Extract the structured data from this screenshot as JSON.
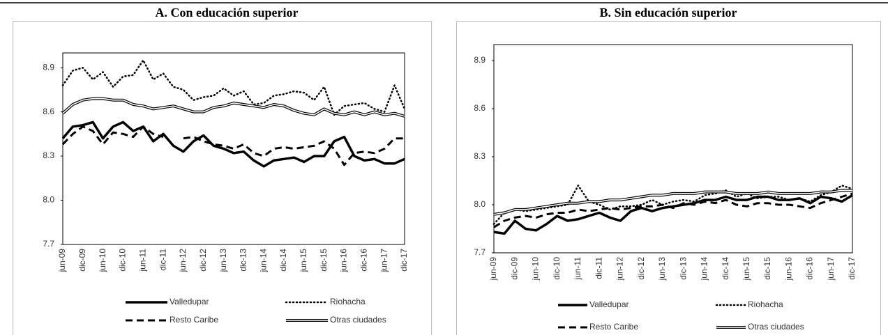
{
  "chart_data": [
    {
      "type": "line",
      "title": "A. Con educación superior",
      "categories": [
        "jun-09",
        null,
        "dic-09",
        null,
        "jun-10",
        null,
        "dic-10",
        null,
        "jun-11",
        null,
        "dic-11",
        null,
        "jun-12",
        null,
        "dic-12",
        null,
        "jun-13",
        null,
        "dic-13",
        null,
        "jun-14",
        null,
        "dic-14",
        null,
        "jun-15",
        null,
        "dic-15",
        null,
        "jun-16",
        null,
        "dic-16",
        null,
        "jun-17",
        null,
        "dic-17"
      ],
      "ylim": [
        7.7,
        9.0
      ],
      "yticks": [
        7.7,
        {
          "value": 8.0,
          "label": "8.0"
        },
        8.3,
        8.6,
        8.9
      ],
      "series": [
        {
          "name": "Valledupar",
          "color": "#000000",
          "style": "solid",
          "values": [
            8.42,
            8.5,
            8.51,
            8.53,
            8.42,
            8.5,
            8.53,
            8.47,
            8.5,
            8.4,
            8.45,
            8.37,
            8.33,
            8.4,
            8.44,
            8.37,
            8.35,
            8.32,
            8.33,
            8.27,
            8.23,
            8.27,
            8.28,
            8.29,
            8.26,
            8.3,
            8.3,
            8.4,
            8.43,
            8.3,
            8.27,
            8.28,
            8.25,
            8.25,
            8.28
          ]
        },
        {
          "name": "Riohacha",
          "color": "#000000",
          "style": "dotted",
          "values": [
            8.78,
            8.88,
            8.9,
            8.82,
            8.87,
            8.77,
            8.84,
            8.85,
            8.95,
            8.82,
            8.86,
            8.77,
            8.75,
            8.68,
            8.7,
            8.71,
            8.76,
            8.71,
            8.74,
            8.65,
            8.66,
            8.71,
            8.72,
            8.74,
            8.73,
            8.68,
            8.77,
            8.58,
            8.64,
            8.65,
            8.66,
            8.62,
            8.6,
            8.78,
            8.62
          ]
        },
        {
          "name": "Resto Caribe",
          "color": "#000000",
          "style": "dashed",
          "values": [
            8.38,
            8.45,
            8.5,
            8.47,
            8.38,
            8.46,
            8.45,
            8.43,
            8.5,
            8.45,
            8.43,
            null,
            8.42,
            8.43,
            8.4,
            8.38,
            8.37,
            8.35,
            8.38,
            8.32,
            8.3,
            8.35,
            8.36,
            8.35,
            8.36,
            8.37,
            8.4,
            8.35,
            8.24,
            8.32,
            8.33,
            8.32,
            8.35,
            8.42,
            8.42
          ]
        },
        {
          "name": "Otras ciudades",
          "color": "#000000",
          "style": "double",
          "values": [
            8.59,
            8.65,
            8.68,
            8.69,
            8.69,
            8.68,
            8.68,
            8.65,
            8.64,
            8.62,
            8.63,
            8.64,
            8.62,
            8.6,
            8.6,
            8.63,
            8.64,
            8.66,
            8.65,
            8.64,
            8.63,
            8.65,
            8.64,
            8.61,
            8.59,
            8.58,
            8.62,
            8.59,
            8.58,
            8.6,
            8.58,
            8.6,
            8.58,
            8.59,
            8.57
          ]
        }
      ]
    },
    {
      "type": "line",
      "title": "B. Sin educación superior",
      "categories": [
        "jun-09",
        null,
        "dic-09",
        null,
        "jun-10",
        null,
        "dic-10",
        null,
        "jun-11",
        null,
        "dic-11",
        null,
        "jun-12",
        null,
        "dic-12",
        null,
        "jun-13",
        null,
        "dic-13",
        null,
        "jun-14",
        null,
        "dic-14",
        null,
        "jun-15",
        null,
        "dic-15",
        null,
        "jun-16",
        null,
        "dic-16",
        null,
        "jun-17",
        null,
        "dic-17"
      ],
      "ylim": [
        7.7,
        9.0
      ],
      "yticks": [
        7.7,
        {
          "value": 8.0,
          "label": "8.0"
        },
        8.3,
        8.6,
        8.9
      ],
      "series": [
        {
          "name": "Valledupar",
          "color": "#000000",
          "style": "solid",
          "values": [
            7.83,
            7.82,
            7.9,
            7.85,
            7.84,
            7.88,
            7.93,
            7.9,
            7.91,
            7.93,
            7.95,
            7.92,
            7.9,
            7.96,
            7.98,
            7.96,
            7.98,
            7.99,
            8.0,
            8.01,
            8.03,
            8.03,
            8.05,
            8.03,
            8.03,
            8.05,
            8.05,
            8.03,
            8.03,
            8.04,
            8.01,
            8.05,
            8.04,
            8.02,
            8.06
          ]
        },
        {
          "name": "Riohacha",
          "color": "#000000",
          "style": "dotted",
          "values": [
            7.88,
            7.95,
            7.97,
            7.96,
            7.97,
            7.98,
            7.99,
            8.0,
            8.12,
            8.02,
            8.0,
            7.97,
            7.99,
            7.99,
            8.0,
            8.03,
            8.0,
            8.02,
            8.03,
            8.02,
            8.06,
            8.07,
            8.09,
            8.05,
            8.07,
            8.04,
            8.05,
            8.05,
            8.03,
            8.04,
            8.02,
            8.06,
            8.08,
            8.12,
            8.1
          ]
        },
        {
          "name": "Resto Caribe",
          "color": "#000000",
          "style": "dashed",
          "values": [
            7.86,
            7.9,
            7.92,
            7.93,
            7.92,
            7.94,
            7.95,
            7.95,
            7.97,
            7.96,
            7.97,
            7.98,
            7.97,
            7.98,
            7.99,
            7.99,
            8.0,
            7.98,
            8.01,
            8.0,
            8.02,
            8.01,
            8.03,
            8.0,
            7.99,
            8.01,
            8.01,
            8.0,
            8.0,
            7.99,
            7.98,
            8.01,
            8.03,
            8.05,
            8.07
          ]
        },
        {
          "name": "Otras ciudades",
          "color": "#000000",
          "style": "double",
          "values": [
            7.94,
            7.95,
            7.97,
            7.97,
            7.98,
            7.99,
            8.0,
            8.01,
            8.01,
            8.02,
            8.02,
            8.03,
            8.03,
            8.04,
            8.05,
            8.06,
            8.06,
            8.07,
            8.07,
            8.07,
            8.08,
            8.08,
            8.08,
            8.07,
            8.07,
            8.07,
            8.08,
            8.07,
            8.07,
            8.07,
            8.07,
            8.08,
            8.08,
            8.09,
            8.09
          ]
        }
      ]
    }
  ]
}
